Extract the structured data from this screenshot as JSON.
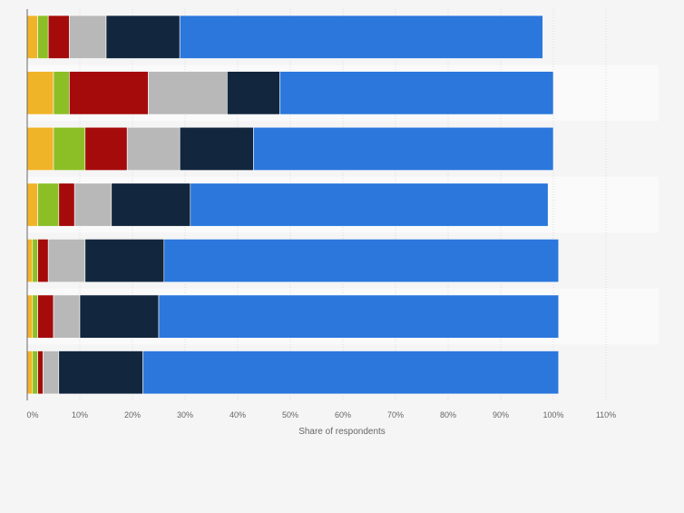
{
  "chart_data": {
    "type": "bar",
    "orientation": "horizontal",
    "stacked": true,
    "xlabel": "Share of respondents",
    "xlim": [
      0,
      120
    ],
    "xticks": [
      0,
      10,
      20,
      30,
      40,
      50,
      60,
      70,
      80,
      90,
      100,
      110
    ],
    "x_tick_labels": [
      "0%",
      "10%",
      "20%",
      "30%",
      "40%",
      "50%",
      "60%",
      "70%",
      "80%",
      "90%",
      "100%",
      "110%"
    ],
    "categories": [
      "",
      "",
      "",
      "",
      "",
      "",
      ""
    ],
    "series": [
      {
        "name": "",
        "color": "#f0b429",
        "values": [
          2,
          5,
          5,
          2,
          1,
          1,
          1
        ]
      },
      {
        "name": "",
        "color": "#8cbf26",
        "values": [
          2,
          3,
          6,
          4,
          1,
          1,
          1
        ]
      },
      {
        "name": "",
        "color": "#a50b0b",
        "values": [
          4,
          15,
          8,
          3,
          2,
          3,
          1
        ]
      },
      {
        "name": "",
        "color": "#b8b8b8",
        "values": [
          7,
          15,
          10,
          7,
          7,
          5,
          3
        ]
      },
      {
        "name": "",
        "color": "#12263e",
        "values": [
          14,
          10,
          14,
          15,
          15,
          15,
          16
        ]
      },
      {
        "name": "",
        "color": "#2b77dc",
        "values": [
          69,
          52,
          57,
          68,
          75,
          76,
          79
        ]
      }
    ]
  }
}
